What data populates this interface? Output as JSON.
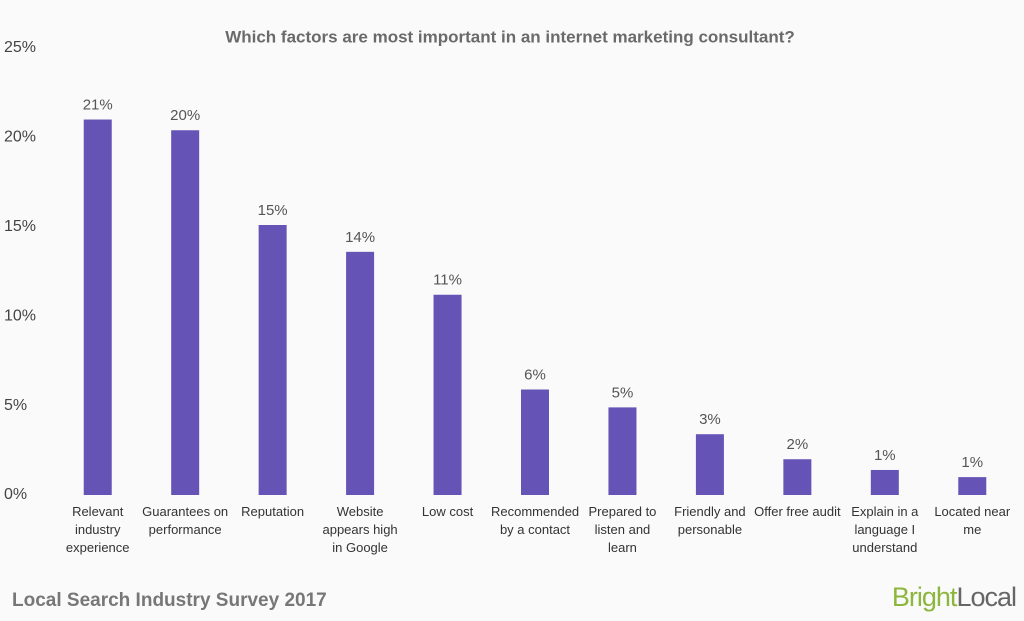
{
  "chart_data": {
    "type": "bar",
    "title": "Which factors are most important in an internet marketing consultant?",
    "categories": [
      "Relevant industry experience",
      "Guarantees on performance",
      "Reputation",
      "Website appears high in Google",
      "Low cost",
      "Recommended by a contact",
      "Prepared to listen and learn",
      "Friendly and personable",
      "Offer free audit",
      "Explain in a language I understand",
      "Located near me"
    ],
    "values": [
      21.0,
      20.4,
      15.1,
      13.6,
      11.2,
      5.9,
      4.9,
      3.4,
      2.0,
      1.4,
      1.0
    ],
    "value_labels": [
      "21%",
      "20%",
      "15%",
      "14%",
      "11%",
      "6%",
      "5%",
      "3%",
      "2%",
      "1%",
      "1%"
    ],
    "color": "#6553b5",
    "ylim": [
      0,
      25
    ],
    "yticks": [
      {
        "value": 0,
        "label": "0%"
      },
      {
        "value": 5,
        "label": "5%"
      },
      {
        "value": 10,
        "label": "10%"
      },
      {
        "value": 15,
        "label": "15%"
      },
      {
        "value": 20,
        "label": "20%"
      },
      {
        "value": 25,
        "label": "25%"
      }
    ],
    "grid": false
  },
  "footer": {
    "source": "Local Search Industry Survey 2017",
    "logo": {
      "first": "Bright",
      "second": "Local"
    }
  }
}
